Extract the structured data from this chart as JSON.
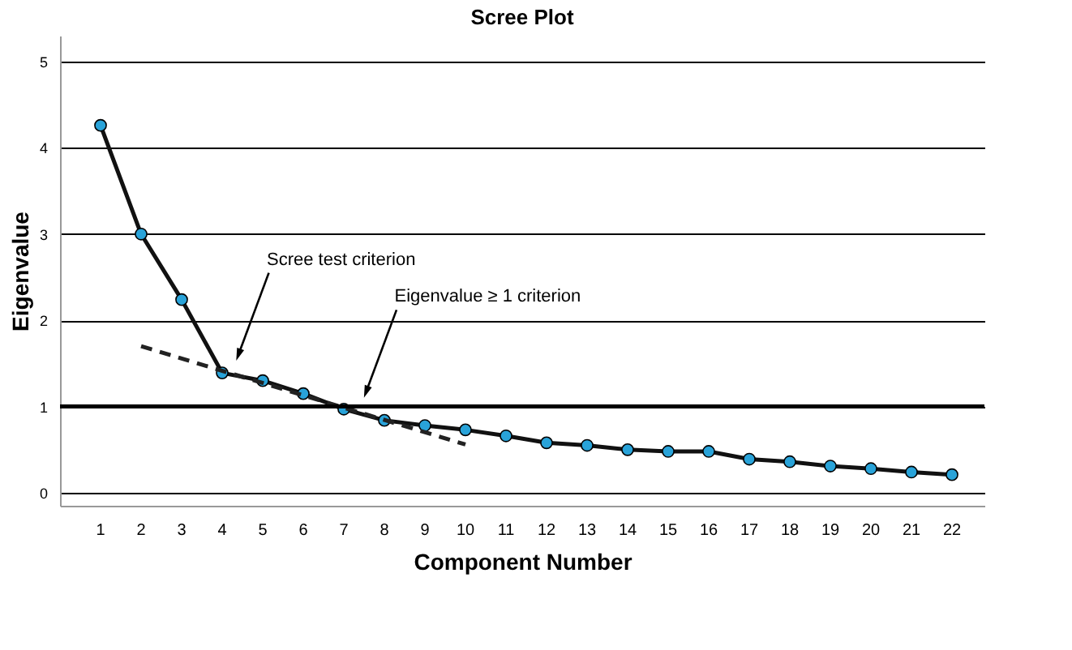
{
  "chart_data": {
    "type": "line",
    "title": "Scree Plot",
    "xlabel": "Component Number",
    "ylabel": "Eigenvalue",
    "x": [
      1,
      2,
      3,
      4,
      5,
      6,
      7,
      8,
      9,
      10,
      11,
      12,
      13,
      14,
      15,
      16,
      17,
      18,
      19,
      20,
      21,
      22
    ],
    "xlim": [
      0,
      22.8
    ],
    "xticks": [
      1,
      2,
      3,
      4,
      5,
      6,
      7,
      8,
      9,
      10,
      11,
      12,
      13,
      14,
      15,
      16,
      17,
      18,
      19,
      20,
      21,
      22
    ],
    "ylim": [
      -0.15,
      5.3
    ],
    "yticks": [
      0,
      1,
      2,
      3,
      4,
      5
    ],
    "grid": "y",
    "marker": "circle",
    "line_style": "solid",
    "series": [
      {
        "color": "#29a3d9",
        "values": [
          4.26,
          3.0,
          2.24,
          1.39,
          1.3,
          1.15,
          0.97,
          0.84,
          0.78,
          0.73,
          0.66,
          0.58,
          0.55,
          0.5,
          0.48,
          0.48,
          0.39,
          0.36,
          0.31,
          0.28,
          0.24,
          0.21
        ]
      },
      {
        "color": "#222222",
        "line_style": "dashed",
        "marker": "none",
        "x": [
          2,
          10
        ],
        "values": [
          1.7,
          0.56
        ]
      }
    ],
    "ref_lines": [
      {
        "axis": "y",
        "value": 1,
        "color": "#000000"
      }
    ],
    "annotations": [
      {
        "text": "Scree test criterion",
        "x": 4.4,
        "y": 1.6
      },
      {
        "text": "Eigenvalue ≥ 1 criterion",
        "x": 7.55,
        "y": 1.17
      }
    ]
  }
}
